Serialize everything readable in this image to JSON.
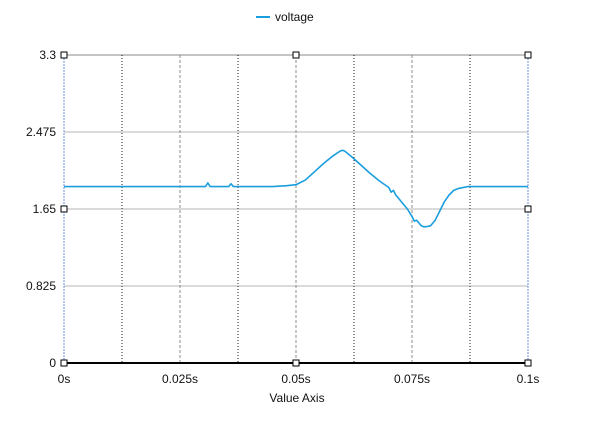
{
  "chart_data": {
    "type": "line",
    "title": "",
    "xlabel": "Value Axis",
    "ylabel": "",
    "xlim": [
      0,
      0.1
    ],
    "ylim": [
      0,
      3.3
    ],
    "x_ticks": [
      {
        "value": 0,
        "label": "0s"
      },
      {
        "value": 0.025,
        "label": "0.025s"
      },
      {
        "value": 0.05,
        "label": "0.05s"
      },
      {
        "value": 0.075,
        "label": "0.075s"
      },
      {
        "value": 0.1,
        "label": "0.1s"
      }
    ],
    "y_ticks": [
      {
        "value": 0,
        "label": "0"
      },
      {
        "value": 0.825,
        "label": "0.825"
      },
      {
        "value": 1.65,
        "label": "1.65"
      },
      {
        "value": 2.475,
        "label": "2.475"
      },
      {
        "value": 3.3,
        "label": "3.3"
      }
    ],
    "x_minor_gridlines": [
      0.0125,
      0.0375,
      0.0625,
      0.0875
    ],
    "grid": true,
    "legend": {
      "position": "top-center"
    },
    "series": [
      {
        "name": "voltage",
        "color": "#1a9ede",
        "x": [
          0,
          0.005,
          0.01,
          0.015,
          0.02,
          0.025,
          0.03,
          0.0305,
          0.031,
          0.0315,
          0.035,
          0.0355,
          0.036,
          0.0365,
          0.04,
          0.045,
          0.048,
          0.05,
          0.052,
          0.054,
          0.056,
          0.058,
          0.0595,
          0.06,
          0.0605,
          0.062,
          0.064,
          0.066,
          0.068,
          0.07,
          0.0705,
          0.071,
          0.0715,
          0.072,
          0.073,
          0.074,
          0.075,
          0.0755,
          0.076,
          0.077,
          0.0775,
          0.078,
          0.079,
          0.08,
          0.081,
          0.082,
          0.083,
          0.084,
          0.085,
          0.087,
          0.09,
          0.095,
          0.1
        ],
        "y": [
          1.89,
          1.89,
          1.89,
          1.89,
          1.89,
          1.89,
          1.89,
          1.89,
          1.93,
          1.89,
          1.89,
          1.89,
          1.92,
          1.89,
          1.89,
          1.89,
          1.9,
          1.91,
          1.96,
          2.05,
          2.14,
          2.22,
          2.27,
          2.28,
          2.27,
          2.21,
          2.12,
          2.03,
          1.95,
          1.88,
          1.83,
          1.85,
          1.8,
          1.77,
          1.71,
          1.65,
          1.57,
          1.52,
          1.53,
          1.47,
          1.46,
          1.46,
          1.47,
          1.53,
          1.63,
          1.73,
          1.8,
          1.85,
          1.87,
          1.89,
          1.89,
          1.89,
          1.89
        ]
      }
    ]
  }
}
